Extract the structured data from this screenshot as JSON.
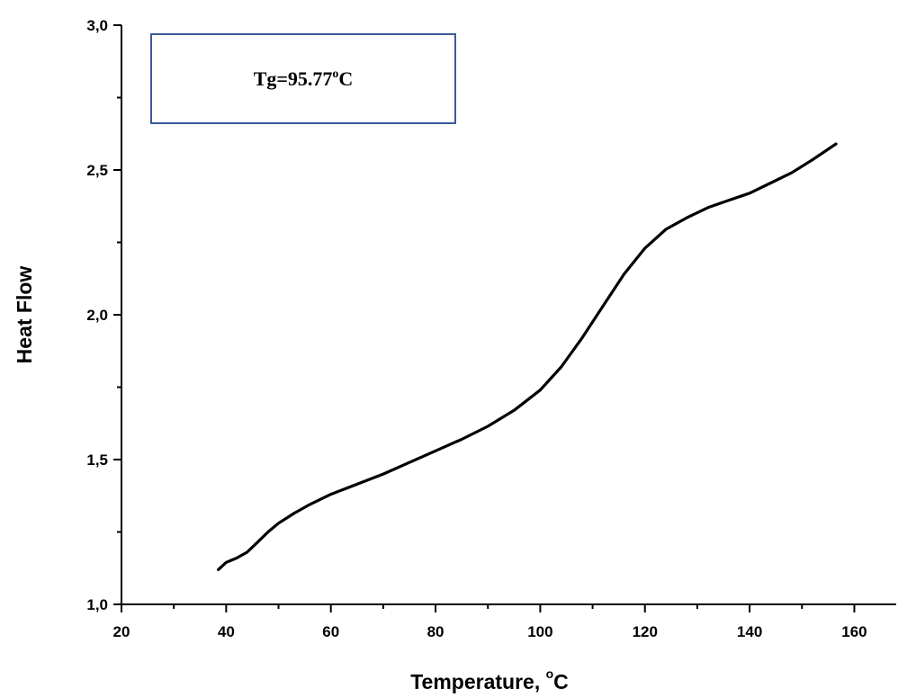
{
  "chart_data": {
    "type": "line",
    "title": "",
    "xlabel": "Temperature, ",
    "xlabel_unit_sup": "o",
    "xlabel_unit": "C",
    "ylabel": "Heat Flow",
    "xlim": [
      20,
      168
    ],
    "ylim": [
      1.0,
      3.0
    ],
    "x_ticks": [
      20,
      40,
      60,
      80,
      100,
      120,
      140,
      160
    ],
    "x_tick_labels": [
      "20",
      "40",
      "60",
      "80",
      "100",
      "120",
      "140",
      "160"
    ],
    "y_ticks": [
      1.0,
      1.5,
      2.0,
      2.5,
      3.0
    ],
    "y_tick_labels": [
      "1,0",
      "1,5",
      "2,0",
      "2,5",
      "3,0"
    ],
    "grid": false,
    "annotation": {
      "text_main": "Tg=95.77",
      "text_sup": "o",
      "text_tail": "C",
      "box_color": "#3a5a9a"
    },
    "line_color": "#000000",
    "series": [
      {
        "x": [
          38.5,
          40,
          42,
          44,
          46,
          48,
          50,
          53,
          56,
          60,
          65,
          70,
          75,
          80,
          85,
          90,
          95,
          100,
          104,
          108,
          112,
          116,
          120,
          124,
          128,
          132,
          136,
          140,
          144,
          148,
          152,
          156.5
        ],
        "y": [
          1.12,
          1.145,
          1.16,
          1.18,
          1.215,
          1.25,
          1.28,
          1.315,
          1.345,
          1.38,
          1.415,
          1.45,
          1.49,
          1.53,
          1.57,
          1.615,
          1.67,
          1.74,
          1.82,
          1.92,
          2.03,
          2.14,
          2.23,
          2.295,
          2.335,
          2.37,
          2.395,
          2.42,
          2.455,
          2.49,
          2.535,
          2.59
        ]
      }
    ]
  }
}
